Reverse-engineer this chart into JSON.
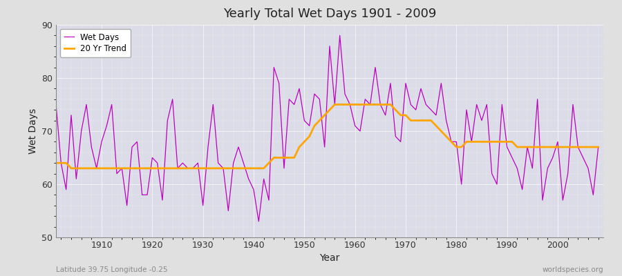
{
  "title": "Yearly Total Wet Days 1901 - 2009",
  "xlabel": "Year",
  "ylabel": "Wet Days",
  "subtitle": "Latitude 39.75 Longitude -0.25",
  "watermark": "worldspecies.org",
  "ylim": [
    50,
    90
  ],
  "xlim": [
    1901,
    2009
  ],
  "yticks": [
    50,
    60,
    70,
    80,
    90
  ],
  "xticks": [
    1910,
    1920,
    1930,
    1940,
    1950,
    1960,
    1970,
    1980,
    1990,
    2000
  ],
  "wet_days_color": "#bb00bb",
  "trend_color": "#FFA500",
  "background_color": "#e0e0e0",
  "plot_bg_color": "#dcdce8",
  "legend_entries": [
    "Wet Days",
    "20 Yr Trend"
  ],
  "wet_days": [
    75,
    64,
    59,
    73,
    61,
    70,
    75,
    67,
    63,
    68,
    71,
    75,
    62,
    63,
    56,
    67,
    68,
    58,
    58,
    65,
    64,
    57,
    72,
    76,
    63,
    64,
    63,
    63,
    64,
    56,
    67,
    75,
    64,
    63,
    55,
    64,
    67,
    64,
    61,
    59,
    53,
    61,
    57,
    82,
    79,
    63,
    76,
    75,
    78,
    72,
    71,
    77,
    76,
    67,
    86,
    75,
    88,
    77,
    75,
    71,
    70,
    76,
    75,
    82,
    75,
    73,
    79,
    69,
    68,
    79,
    75,
    74,
    78,
    75,
    74,
    73,
    79,
    72,
    68,
    68,
    60,
    74,
    68,
    75,
    72,
    75,
    62,
    60,
    75,
    67,
    65,
    63,
    59,
    67,
    63,
    76,
    57,
    63,
    65,
    68,
    57,
    62,
    75,
    67,
    65,
    63,
    58,
    67
  ],
  "trend": [
    64,
    64,
    64,
    63,
    63,
    63,
    63,
    63,
    63,
    63,
    63,
    63,
    63,
    63,
    63,
    63,
    63,
    63,
    63,
    63,
    63,
    63,
    63,
    63,
    63,
    63,
    63,
    63,
    63,
    63,
    63,
    63,
    63,
    63,
    63,
    63,
    63,
    63,
    63,
    63,
    63,
    63,
    64,
    65,
    65,
    65,
    65,
    65,
    67,
    68,
    69,
    71,
    72,
    73,
    74,
    75,
    75,
    75,
    75,
    75,
    75,
    75,
    75,
    75,
    75,
    75,
    75,
    74,
    73,
    73,
    72,
    72,
    72,
    72,
    72,
    71,
    70,
    69,
    68,
    67,
    67,
    68,
    68,
    68,
    68,
    68,
    68,
    68,
    68,
    68,
    68,
    67,
    67,
    67,
    67,
    67,
    67,
    67,
    67,
    67,
    67,
    67,
    67,
    67,
    67,
    67,
    67,
    67
  ]
}
